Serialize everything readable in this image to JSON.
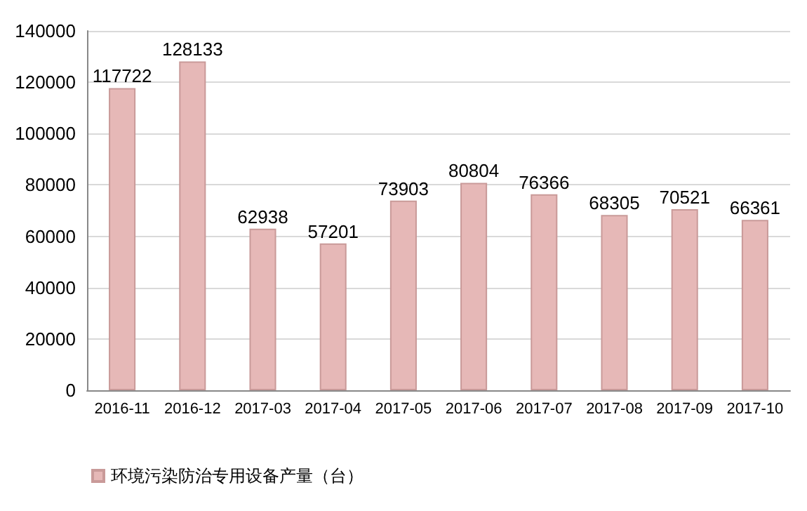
{
  "chart_data": {
    "type": "bar",
    "categories": [
      "2016-11",
      "2016-12",
      "2017-03",
      "2017-04",
      "2017-05",
      "2017-06",
      "2017-07",
      "2017-08",
      "2017-09",
      "2017-10"
    ],
    "series": [
      {
        "name": "环境污染防治专用设备产量（台）",
        "color": "#e6b8b7",
        "values": [
          117722,
          128133,
          62938,
          57201,
          73903,
          80804,
          76366,
          68305,
          70521,
          66361
        ]
      }
    ],
    "ylim": [
      0,
      140000
    ],
    "yticks": [
      0,
      20000,
      40000,
      60000,
      80000,
      100000,
      120000,
      140000
    ],
    "grid": "y",
    "legend": "bottom",
    "data_labels": true
  }
}
